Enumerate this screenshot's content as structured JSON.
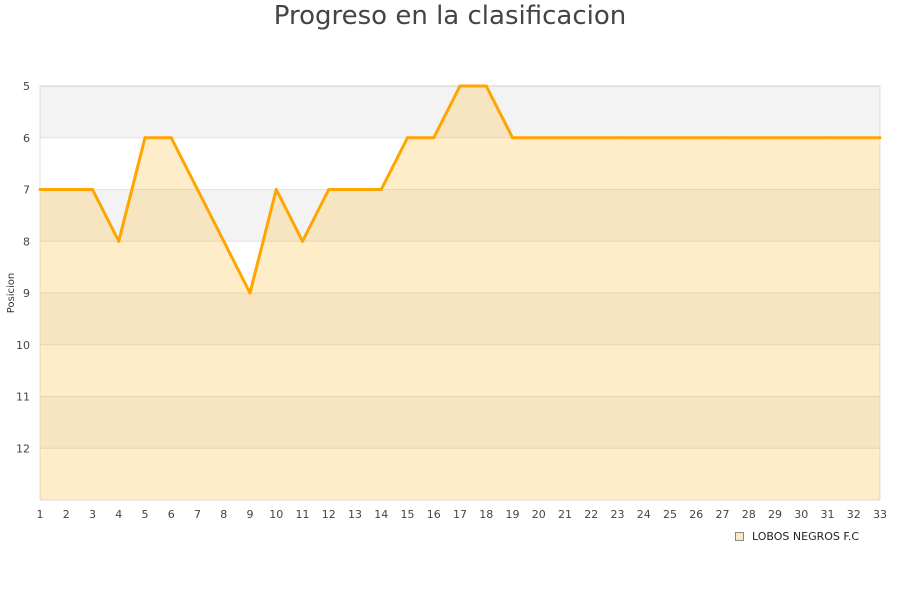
{
  "chart_data": {
    "type": "area",
    "title": "Progreso en la clasificacion",
    "xlabel": "",
    "ylabel": "Posicion",
    "x": [
      1,
      2,
      3,
      4,
      5,
      6,
      7,
      8,
      9,
      10,
      11,
      12,
      13,
      14,
      15,
      16,
      17,
      18,
      19,
      20,
      21,
      22,
      23,
      24,
      25,
      26,
      27,
      28,
      29,
      30,
      31,
      32,
      33
    ],
    "series": [
      {
        "name": "LOBOS NEGROS F.C",
        "values": [
          7,
          7,
          7,
          8,
          6,
          6,
          7,
          8,
          9,
          7,
          8,
          7,
          7,
          7,
          6,
          6,
          5,
          5,
          6,
          6,
          6,
          6,
          6,
          6,
          6,
          6,
          6,
          6,
          6,
          6,
          6,
          6,
          6
        ]
      }
    ],
    "ylim": [
      5,
      13
    ],
    "y_inverted": true,
    "yticks": [
      5,
      6,
      7,
      8,
      9,
      10,
      11,
      12
    ],
    "grid": true,
    "legend_position": "bottom-right",
    "colors": {
      "line": "#ffa500",
      "fill": "#ffe9c2",
      "band": "#f3f3f3"
    }
  }
}
